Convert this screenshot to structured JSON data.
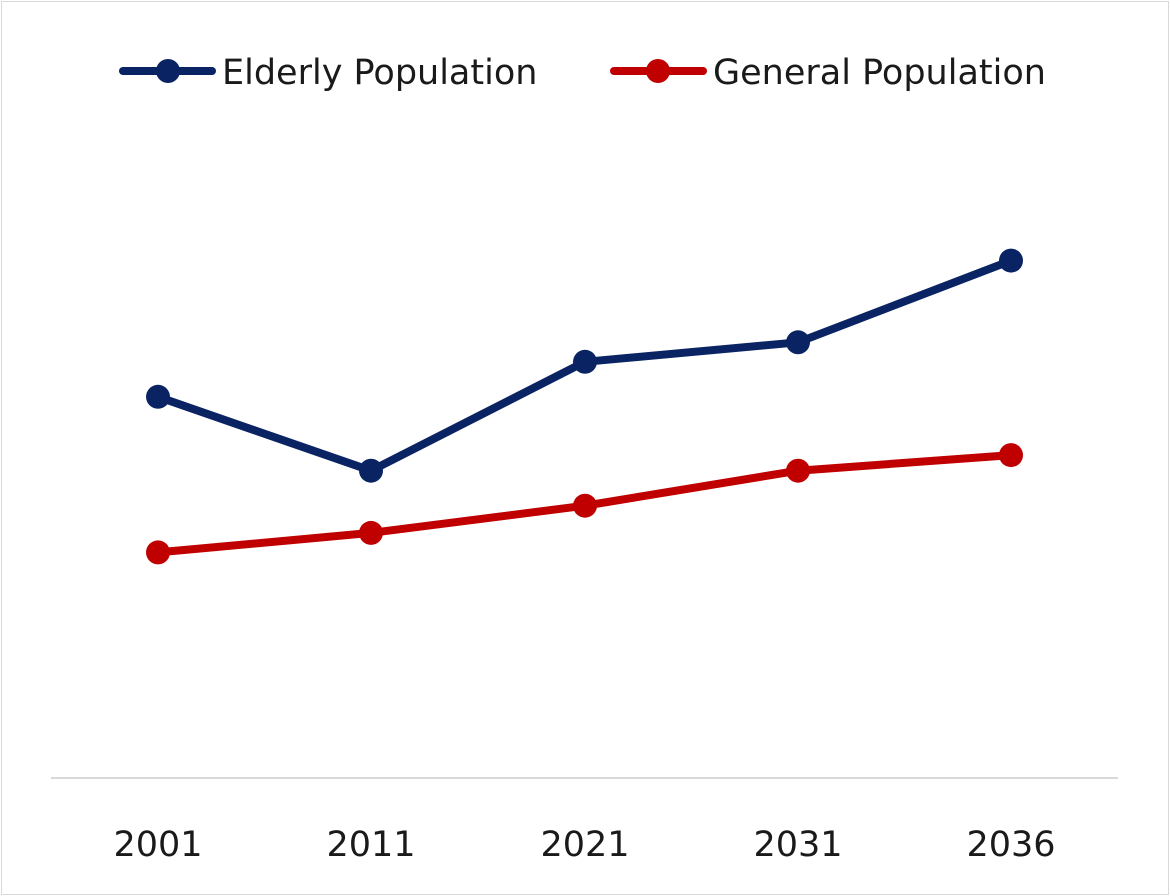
{
  "chart_data": {
    "type": "line",
    "title": "",
    "xlabel": "",
    "ylabel": "",
    "x": [
      "2001",
      "2011",
      "2021",
      "2031",
      "2036"
    ],
    "ylim": [
      0,
      20
    ],
    "grid": false,
    "legend_position": "top",
    "series": [
      {
        "name": "Elderly Population",
        "color": "#0a2463",
        "values": [
          9.8,
          7.9,
          10.7,
          11.2,
          13.3
        ]
      },
      {
        "name": "General Population",
        "color": "#c00000",
        "values": [
          5.8,
          6.3,
          7.0,
          7.9,
          8.3
        ]
      }
    ]
  }
}
